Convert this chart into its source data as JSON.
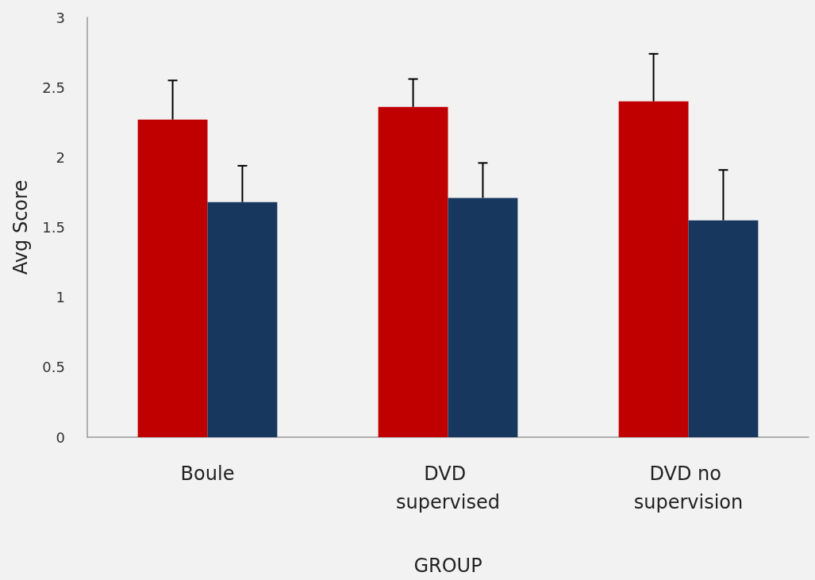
{
  "chart_data": {
    "type": "bar",
    "xlabel": "GROUP",
    "ylabel": "Avg Score",
    "categories": [
      "Boule",
      "DVD supervised",
      "DVD no supervision"
    ],
    "series": [
      {
        "color": "#c00000",
        "values": [
          2.27,
          2.36,
          2.4
        ],
        "errors": [
          [
            2.27,
            2.55
          ],
          [
            2.36,
            2.56
          ],
          [
            2.4,
            2.74
          ]
        ]
      },
      {
        "color": "#17375e",
        "values": [
          1.68,
          1.71,
          1.55
        ],
        "errors": [
          [
            1.68,
            1.94
          ],
          [
            1.71,
            1.96
          ],
          [
            1.55,
            1.91
          ]
        ]
      }
    ],
    "ylim": [
      0,
      3
    ],
    "yticks": [
      0,
      0.5,
      1,
      1.5,
      2,
      2.5,
      3
    ],
    "grid": false
  }
}
